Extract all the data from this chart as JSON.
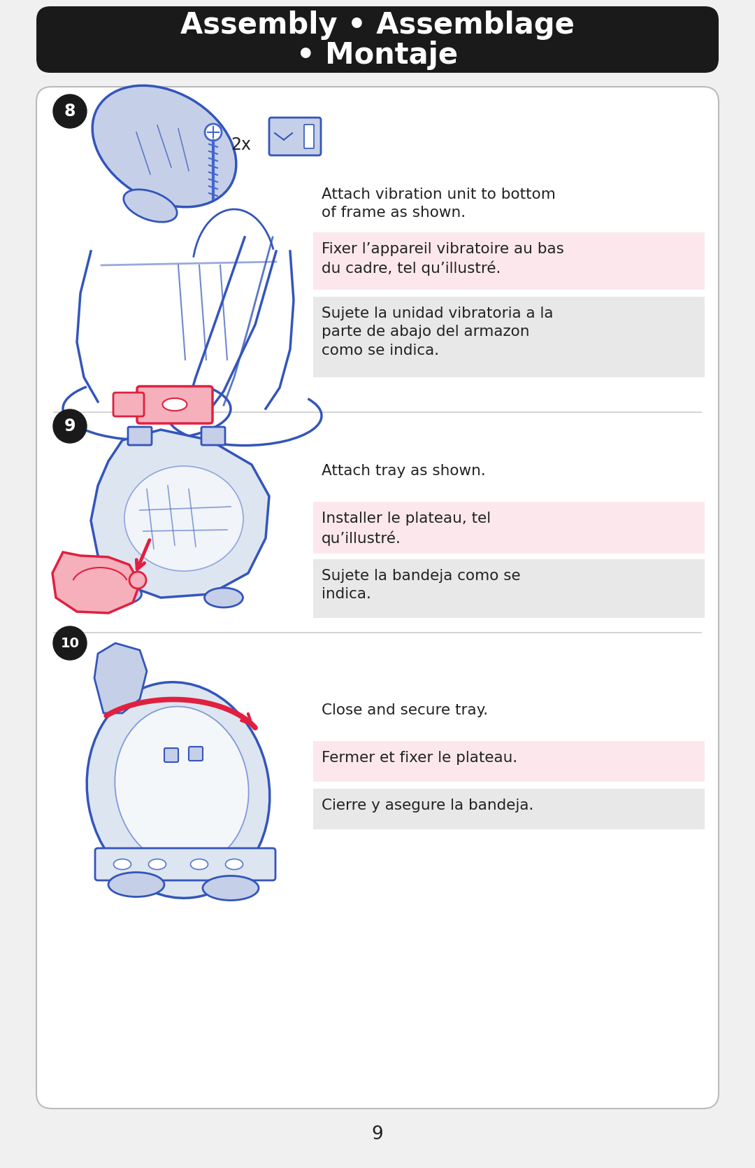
{
  "title_line1": "Assembly • Assemblage",
  "title_line2": "• Montaje",
  "title_bg": "#1a1a1a",
  "title_color": "#ffffff",
  "page_bg": "#f0f0f0",
  "card_bg": "#ffffff",
  "card_border": "#bbbbbb",
  "page_number": "9",
  "step8_texts": [
    {
      "text": "Attach vibration unit to bottom\nof frame as shown.",
      "bg": "#ffffff"
    },
    {
      "text": "Fixer l’appareil vibratoire au bas\ndu cadre, tel qu’illustré.",
      "bg": "#fce8ec"
    },
    {
      "text": "Sujete la unidad vibratoria a la\nparte de abajo del armazon\ncomo se indica.",
      "bg": "#e8e8e8"
    }
  ],
  "step9_texts": [
    {
      "text": "Attach tray as shown.",
      "bg": "#ffffff"
    },
    {
      "text": "Installer le plateau, tel\nqu’illustré.",
      "bg": "#fce8ec"
    },
    {
      "text": "Sujete la bandeja como se\nindica.",
      "bg": "#e8e8e8"
    }
  ],
  "step10_texts": [
    {
      "text": "Close and secure tray.",
      "bg": "#ffffff"
    },
    {
      "text": "Fermer et fixer le plateau.",
      "bg": "#fce8ec"
    },
    {
      "text": "Cierre y asegure la bandeja.",
      "bg": "#e8e8e8"
    }
  ],
  "text_color": "#222222",
  "step_circle_bg": "#1a1a1a",
  "step_circle_color": "#ffffff",
  "blue_dark": "#3355bb",
  "blue_mid": "#5577cc",
  "blue_light": "#c5d0e8",
  "blue_very_light": "#dde5f0",
  "red_color": "#e02040",
  "red_light": "#f5b0bc",
  "screw_color": "#4466cc"
}
